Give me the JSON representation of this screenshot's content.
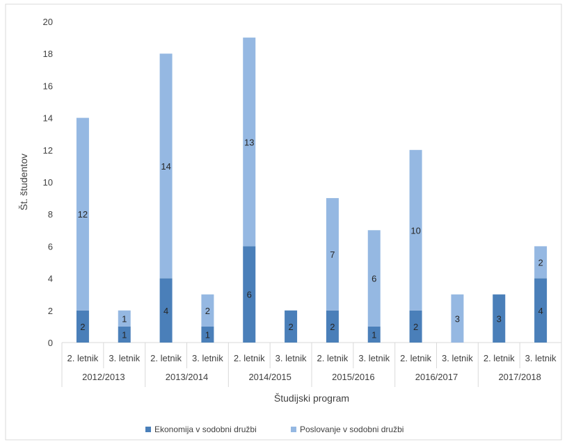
{
  "chart_data": {
    "type": "bar",
    "stacked": true,
    "ylabel": "Št. študentov",
    "xlabel": "Študijski program",
    "ylim": [
      0,
      20
    ],
    "yticks": [
      0,
      2,
      4,
      6,
      8,
      10,
      12,
      14,
      16,
      18,
      20
    ],
    "grid": false,
    "legend_position": "bottom",
    "groups": [
      "2012/2013",
      "2013/2014",
      "2014/2015",
      "2015/2016",
      "2016/2017",
      "2017/2018"
    ],
    "categories": [
      "2. letnik",
      "3. letnik",
      "2. letnik",
      "3. letnik",
      "2. letnik",
      "3. letnik",
      "2. letnik",
      "3. letnik",
      "2. letnik",
      "3. letnik",
      "2. letnik",
      "3. letnik"
    ],
    "series": [
      {
        "name": "Ekonomija v sodobni družbi",
        "color": "#4a7fb9",
        "values": [
          2,
          1,
          4,
          1,
          6,
          2,
          2,
          1,
          2,
          0,
          3,
          4
        ]
      },
      {
        "name": "Poslovanje v sodobni družbi",
        "color": "#95b8e2",
        "values": [
          12,
          1,
          14,
          2,
          13,
          0,
          7,
          6,
          10,
          3,
          0,
          2
        ]
      }
    ]
  }
}
